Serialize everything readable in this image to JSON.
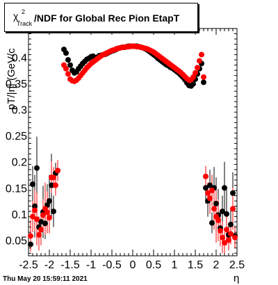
{
  "title": {
    "chi_symbol": "χ",
    "chi_superscript": "2",
    "chi_subscript": "Track",
    "text": "/NDF for Global Rec Pion EtapT"
  },
  "datestamp": "Thu May 20 15:59:11 2021",
  "chart_data": {
    "type": "scatter",
    "xlabel": "η",
    "ylabel": "pT/|η| (GeV/c",
    "xlim": [
      -2.5,
      2.5
    ],
    "ylim": [
      0.02,
      0.455
    ],
    "x_ticks": [
      "-2.5",
      "-2",
      "-1.5",
      "-1",
      "-0.5",
      "0",
      "0.5",
      "1",
      "1.5",
      "2",
      "2.5"
    ],
    "y_ticks": [
      "0.05",
      "0.1",
      "0.15",
      "0.2",
      "0.25",
      "0.3",
      "0.35",
      "0.4"
    ],
    "grid": false,
    "series": [
      {
        "color": "#000000",
        "points": [
          {
            "x": -2.45,
            "y": 0.042,
            "err": 0.012
          },
          {
            "x": -2.4,
            "y": 0.157,
            "err": 0.035
          },
          {
            "x": -2.35,
            "y": 0.115,
            "err": 0.06
          },
          {
            "x": -2.3,
            "y": 0.188,
            "err": 0.06
          },
          {
            "x": -2.25,
            "y": 0.075,
            "err": 0.02
          },
          {
            "x": -2.2,
            "y": 0.085,
            "err": 0.02
          },
          {
            "x": -2.15,
            "y": 0.104,
            "err": 0.05
          },
          {
            "x": -2.1,
            "y": 0.082,
            "err": 0.03
          },
          {
            "x": -2.05,
            "y": 0.117,
            "err": 0.04
          },
          {
            "x": -2.0,
            "y": 0.125,
            "err": 0.05
          },
          {
            "x": -1.95,
            "y": 0.155,
            "err": 0.06
          },
          {
            "x": -1.9,
            "y": 0.105,
            "err": 0.03
          },
          {
            "x": -1.85,
            "y": 0.178,
            "err": 0.02
          },
          {
            "x": -1.8,
            "y": 0.183,
            "err": 0.02
          },
          {
            "x": -1.65,
            "y": 0.415
          },
          {
            "x": -1.6,
            "y": 0.408
          },
          {
            "x": -1.55,
            "y": 0.395
          },
          {
            "x": -1.5,
            "y": 0.385
          },
          {
            "x": -1.45,
            "y": 0.375
          },
          {
            "x": -1.4,
            "y": 0.37
          },
          {
            "x": -1.35,
            "y": 0.372
          },
          {
            "x": -1.3,
            "y": 0.378
          },
          {
            "x": -1.25,
            "y": 0.383
          },
          {
            "x": -1.2,
            "y": 0.388
          },
          {
            "x": -1.15,
            "y": 0.392
          },
          {
            "x": -1.1,
            "y": 0.396
          },
          {
            "x": -1.05,
            "y": 0.398
          },
          {
            "x": -1.0,
            "y": 0.401
          },
          {
            "x": -0.95,
            "y": 0.402
          },
          {
            "x": -0.9,
            "y": 0.398
          },
          {
            "x": -0.85,
            "y": 0.4
          },
          {
            "x": -0.8,
            "y": 0.403
          },
          {
            "x": -0.75,
            "y": 0.404
          },
          {
            "x": -0.7,
            "y": 0.405
          },
          {
            "x": -0.65,
            "y": 0.406
          },
          {
            "x": -0.6,
            "y": 0.408
          },
          {
            "x": -0.55,
            "y": 0.41
          },
          {
            "x": -0.5,
            "y": 0.412
          },
          {
            "x": -0.45,
            "y": 0.413
          },
          {
            "x": -0.4,
            "y": 0.415
          },
          {
            "x": -0.35,
            "y": 0.417
          },
          {
            "x": -0.3,
            "y": 0.418
          },
          {
            "x": -0.25,
            "y": 0.419
          },
          {
            "x": -0.2,
            "y": 0.419
          },
          {
            "x": -0.15,
            "y": 0.42
          },
          {
            "x": -0.1,
            "y": 0.421
          },
          {
            "x": -0.05,
            "y": 0.421
          },
          {
            "x": 0.0,
            "y": 0.421
          },
          {
            "x": 0.05,
            "y": 0.421
          },
          {
            "x": 0.1,
            "y": 0.421
          },
          {
            "x": 0.15,
            "y": 0.42
          },
          {
            "x": 0.2,
            "y": 0.419
          },
          {
            "x": 0.25,
            "y": 0.418
          },
          {
            "x": 0.3,
            "y": 0.416
          },
          {
            "x": 0.35,
            "y": 0.414
          },
          {
            "x": 0.4,
            "y": 0.411
          },
          {
            "x": 0.45,
            "y": 0.408
          },
          {
            "x": 0.5,
            "y": 0.405
          },
          {
            "x": 0.55,
            "y": 0.402
          },
          {
            "x": 0.6,
            "y": 0.398
          },
          {
            "x": 0.65,
            "y": 0.395
          },
          {
            "x": 0.7,
            "y": 0.392
          },
          {
            "x": 0.75,
            "y": 0.389
          },
          {
            "x": 0.8,
            "y": 0.386
          },
          {
            "x": 0.85,
            "y": 0.384
          },
          {
            "x": 0.9,
            "y": 0.381
          },
          {
            "x": 0.95,
            "y": 0.379
          },
          {
            "x": 1.0,
            "y": 0.376
          },
          {
            "x": 1.05,
            "y": 0.373
          },
          {
            "x": 1.1,
            "y": 0.37
          },
          {
            "x": 1.15,
            "y": 0.366
          },
          {
            "x": 1.2,
            "y": 0.362
          },
          {
            "x": 1.25,
            "y": 0.357
          },
          {
            "x": 1.3,
            "y": 0.351
          },
          {
            "x": 1.35,
            "y": 0.346
          },
          {
            "x": 1.4,
            "y": 0.345
          },
          {
            "x": 1.45,
            "y": 0.349
          },
          {
            "x": 1.5,
            "y": 0.358
          },
          {
            "x": 1.55,
            "y": 0.368
          },
          {
            "x": 1.6,
            "y": 0.378
          },
          {
            "x": 1.65,
            "y": 0.388
          },
          {
            "x": 1.7,
            "y": 0.352
          },
          {
            "x": 1.75,
            "y": 0.15,
            "err": 0.03
          },
          {
            "x": 1.8,
            "y": 0.125,
            "err": 0.03
          },
          {
            "x": 1.85,
            "y": 0.155,
            "err": 0.03
          },
          {
            "x": 1.9,
            "y": 0.083,
            "err": 0.02
          },
          {
            "x": 1.95,
            "y": 0.15,
            "err": 0.04
          },
          {
            "x": 2.0,
            "y": 0.12,
            "err": 0.05
          },
          {
            "x": 2.05,
            "y": 0.098,
            "err": 0.05
          },
          {
            "x": 2.1,
            "y": 0.073,
            "err": 0.03
          },
          {
            "x": 2.15,
            "y": 0.105,
            "err": 0.03
          },
          {
            "x": 2.2,
            "y": 0.15,
            "err": 0.05
          },
          {
            "x": 2.25,
            "y": 0.1,
            "err": 0.05
          },
          {
            "x": 2.3,
            "y": 0.06,
            "err": 0.02
          },
          {
            "x": 2.35,
            "y": 0.08,
            "err": 0.03
          },
          {
            "x": 2.4,
            "y": 0.14,
            "err": 0.04
          },
          {
            "x": 2.45,
            "y": 0.058,
            "err": 0.02
          }
        ]
      },
      {
        "color": "#ff0000",
        "points": [
          {
            "x": -2.45,
            "y": 0.058,
            "err": 0.03
          },
          {
            "x": -2.4,
            "y": 0.095,
            "err": 0.03
          },
          {
            "x": -2.35,
            "y": 0.107,
            "err": 0.04
          },
          {
            "x": -2.3,
            "y": 0.09,
            "err": 0.05
          },
          {
            "x": -2.25,
            "y": 0.06,
            "err": 0.03
          },
          {
            "x": -2.2,
            "y": 0.07,
            "err": 0.03
          },
          {
            "x": -2.15,
            "y": 0.098,
            "err": 0.03
          },
          {
            "x": -2.1,
            "y": 0.11,
            "err": 0.05
          },
          {
            "x": -2.05,
            "y": 0.103,
            "err": 0.04
          },
          {
            "x": -2.0,
            "y": 0.093,
            "err": 0.03
          },
          {
            "x": -1.95,
            "y": 0.17,
            "err": 0.03
          },
          {
            "x": -1.9,
            "y": 0.17,
            "err": 0.02
          },
          {
            "x": -1.85,
            "y": 0.155,
            "err": 0.02
          },
          {
            "x": -1.8,
            "y": 0.183,
            "err": 0.02
          },
          {
            "x": -1.65,
            "y": 0.385
          },
          {
            "x": -1.6,
            "y": 0.378
          },
          {
            "x": -1.55,
            "y": 0.368
          },
          {
            "x": -1.5,
            "y": 0.358
          },
          {
            "x": -1.45,
            "y": 0.355
          },
          {
            "x": -1.4,
            "y": 0.354
          },
          {
            "x": -1.35,
            "y": 0.356
          },
          {
            "x": -1.3,
            "y": 0.36
          },
          {
            "x": -1.25,
            "y": 0.365
          },
          {
            "x": -1.2,
            "y": 0.37
          },
          {
            "x": -1.15,
            "y": 0.375
          },
          {
            "x": -1.1,
            "y": 0.38
          },
          {
            "x": -1.05,
            "y": 0.384
          },
          {
            "x": -1.0,
            "y": 0.388
          },
          {
            "x": -0.95,
            "y": 0.391
          },
          {
            "x": -0.9,
            "y": 0.394
          },
          {
            "x": -0.85,
            "y": 0.397
          },
          {
            "x": -0.8,
            "y": 0.4
          },
          {
            "x": -0.75,
            "y": 0.403
          },
          {
            "x": -0.7,
            "y": 0.405
          },
          {
            "x": -0.65,
            "y": 0.407
          },
          {
            "x": -0.6,
            "y": 0.409
          },
          {
            "x": -0.55,
            "y": 0.411
          },
          {
            "x": -0.5,
            "y": 0.413
          },
          {
            "x": -0.45,
            "y": 0.414
          },
          {
            "x": -0.4,
            "y": 0.416
          },
          {
            "x": -0.35,
            "y": 0.417
          },
          {
            "x": -0.3,
            "y": 0.418
          },
          {
            "x": -0.25,
            "y": 0.419
          },
          {
            "x": -0.2,
            "y": 0.419
          },
          {
            "x": -0.15,
            "y": 0.42
          },
          {
            "x": -0.1,
            "y": 0.42
          },
          {
            "x": -0.05,
            "y": 0.421
          },
          {
            "x": 0.0,
            "y": 0.421
          },
          {
            "x": 0.05,
            "y": 0.421
          },
          {
            "x": 0.1,
            "y": 0.42
          },
          {
            "x": 0.15,
            "y": 0.42
          },
          {
            "x": 0.2,
            "y": 0.419
          },
          {
            "x": 0.25,
            "y": 0.418
          },
          {
            "x": 0.3,
            "y": 0.417
          },
          {
            "x": 0.35,
            "y": 0.416
          },
          {
            "x": 0.4,
            "y": 0.414
          },
          {
            "x": 0.45,
            "y": 0.412
          },
          {
            "x": 0.5,
            "y": 0.41
          },
          {
            "x": 0.55,
            "y": 0.407
          },
          {
            "x": 0.6,
            "y": 0.404
          },
          {
            "x": 0.65,
            "y": 0.401
          },
          {
            "x": 0.7,
            "y": 0.398
          },
          {
            "x": 0.75,
            "y": 0.395
          },
          {
            "x": 0.8,
            "y": 0.392
          },
          {
            "x": 0.85,
            "y": 0.389
          },
          {
            "x": 0.9,
            "y": 0.386
          },
          {
            "x": 0.95,
            "y": 0.383
          },
          {
            "x": 1.0,
            "y": 0.38
          },
          {
            "x": 1.05,
            "y": 0.377
          },
          {
            "x": 1.1,
            "y": 0.374
          },
          {
            "x": 1.15,
            "y": 0.371
          },
          {
            "x": 1.2,
            "y": 0.367
          },
          {
            "x": 1.25,
            "y": 0.363
          },
          {
            "x": 1.3,
            "y": 0.359
          },
          {
            "x": 1.35,
            "y": 0.356
          },
          {
            "x": 1.4,
            "y": 0.357
          },
          {
            "x": 1.45,
            "y": 0.362
          },
          {
            "x": 1.5,
            "y": 0.37
          },
          {
            "x": 1.55,
            "y": 0.38
          },
          {
            "x": 1.6,
            "y": 0.393
          },
          {
            "x": 1.65,
            "y": 0.405
          },
          {
            "x": 1.7,
            "y": 0.362
          },
          {
            "x": 1.75,
            "y": 0.172,
            "err": 0.02
          },
          {
            "x": 1.8,
            "y": 0.14,
            "err": 0.02
          },
          {
            "x": 1.85,
            "y": 0.13,
            "err": 0.03
          },
          {
            "x": 1.9,
            "y": 0.145,
            "err": 0.03
          },
          {
            "x": 1.95,
            "y": 0.11,
            "err": 0.04
          },
          {
            "x": 2.0,
            "y": 0.095,
            "err": 0.05
          },
          {
            "x": 2.05,
            "y": 0.088,
            "err": 0.04
          },
          {
            "x": 2.1,
            "y": 0.068,
            "err": 0.03
          },
          {
            "x": 2.15,
            "y": 0.055,
            "err": 0.03
          },
          {
            "x": 2.2,
            "y": 0.045,
            "err": 0.02
          },
          {
            "x": 2.25,
            "y": 0.07,
            "err": 0.03
          },
          {
            "x": 2.3,
            "y": 0.05,
            "err": 0.02
          },
          {
            "x": 2.35,
            "y": 0.062,
            "err": 0.02
          },
          {
            "x": 2.4,
            "y": 0.11,
            "err": 0.04
          },
          {
            "x": 2.45,
            "y": 0.055,
            "err": 0.02
          }
        ]
      }
    ]
  }
}
